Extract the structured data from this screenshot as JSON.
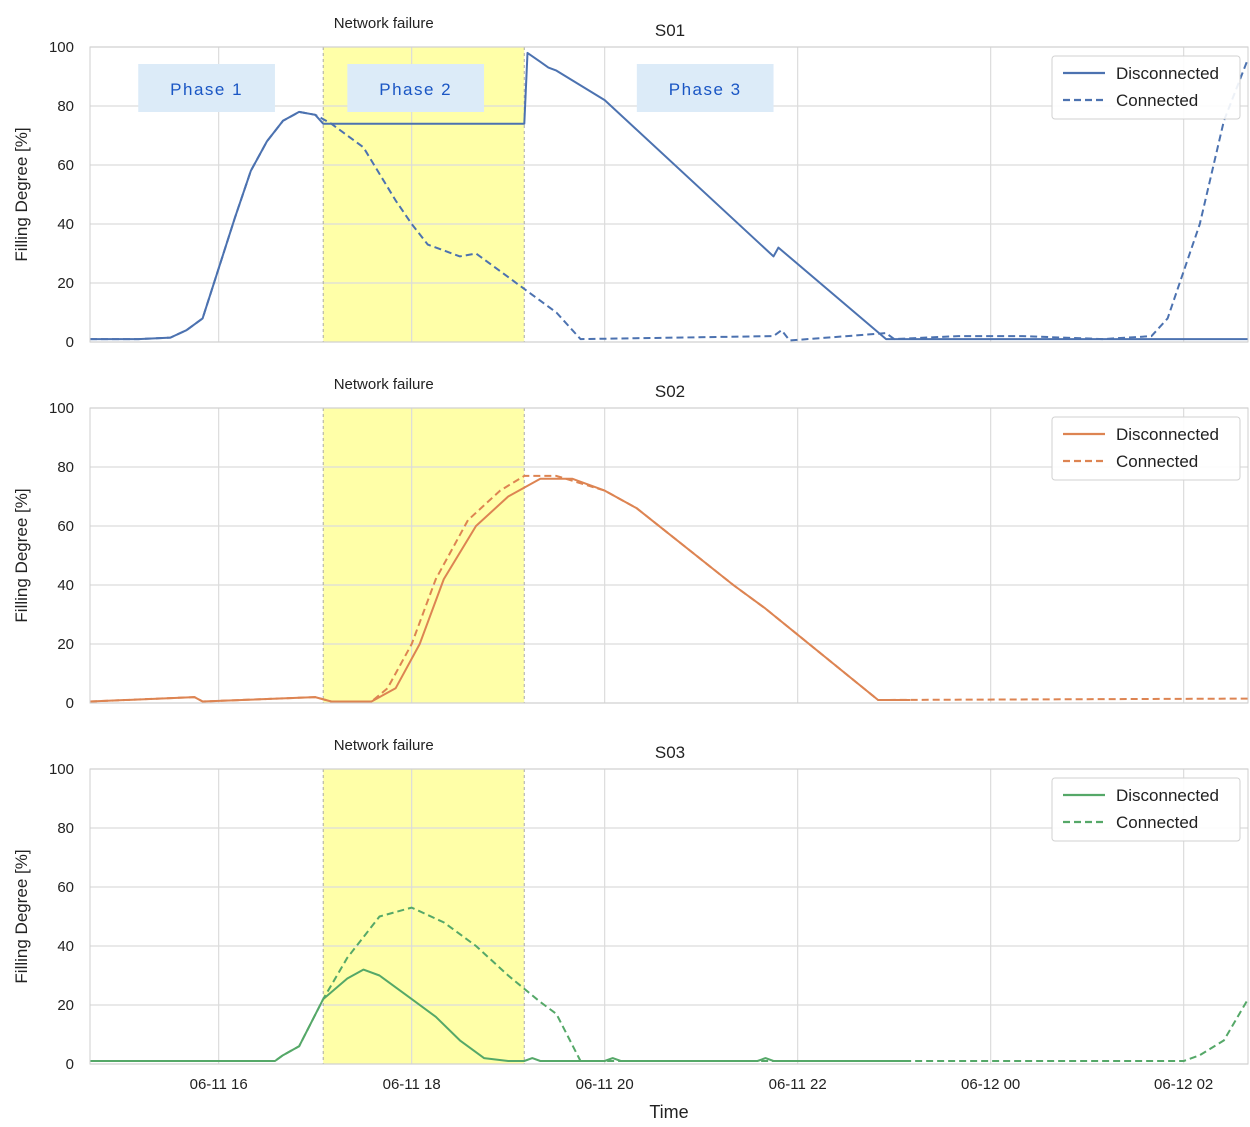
{
  "colors": {
    "S01": "#4c72b0",
    "S02": "#dd8452",
    "S03": "#55a868",
    "failure_fill": "#ffffa8",
    "phase_fill": "#dcebf8",
    "phase_text": "#1a56c4",
    "grid": "#dcdcdc",
    "axes_edge": "#cfcfcf"
  },
  "xlabel": "Time",
  "failure_label": "Network failure",
  "chart_data": [
    {
      "type": "line",
      "title": "S01",
      "ylabel": "Filling Degree [%]",
      "xlim": [
        "06-11 14:40",
        "06-12 02:40"
      ],
      "ylim": [
        0,
        100
      ],
      "yticks": [
        0,
        20,
        40,
        60,
        80,
        100
      ],
      "xticks": [
        "06-11 16",
        "06-11 18",
        "06-11 20",
        "06-11 22",
        "06-12 00",
        "06-12 02"
      ],
      "grid": true,
      "legend_position": "top-right",
      "failure_window": [
        "06-11 17:05",
        "06-11 19:10"
      ],
      "phases": [
        {
          "label": "Phase 1",
          "start": "06-11 15:10",
          "end": "06-11 16:35"
        },
        {
          "label": "Phase 2",
          "start": "06-11 17:20",
          "end": "06-11 18:45"
        },
        {
          "label": "Phase 3",
          "start": "06-11 20:20",
          "end": "06-11 21:45"
        }
      ],
      "series": [
        {
          "name": "Disconnected",
          "style": "solid",
          "points": [
            [
              "06-11 14:40",
              1
            ],
            [
              "06-11 15:10",
              1
            ],
            [
              "06-11 15:30",
              1.5
            ],
            [
              "06-11 15:40",
              4
            ],
            [
              "06-11 15:50",
              8
            ],
            [
              "06-11 16:00",
              25
            ],
            [
              "06-11 16:10",
              42
            ],
            [
              "06-11 16:20",
              58
            ],
            [
              "06-11 16:30",
              68
            ],
            [
              "06-11 16:40",
              75
            ],
            [
              "06-11 16:50",
              78
            ],
            [
              "06-11 17:00",
              77
            ],
            [
              "06-11 17:05",
              74
            ],
            [
              "06-11 19:10",
              74
            ],
            [
              "06-11 19:12",
              98
            ],
            [
              "06-11 19:20",
              95
            ],
            [
              "06-11 19:25",
              93
            ],
            [
              "06-11 19:30",
              92
            ],
            [
              "06-11 20:00",
              82
            ],
            [
              "06-11 21:45",
              29
            ],
            [
              "06-11 21:48",
              32
            ],
            [
              "06-11 22:55",
              1
            ],
            [
              "06-12 02:40",
              1
            ]
          ]
        },
        {
          "name": "Connected",
          "style": "dashed",
          "points": [
            [
              "06-11 14:40",
              1
            ],
            [
              "06-11 15:10",
              1
            ],
            [
              "06-11 15:30",
              1.5
            ],
            [
              "06-11 15:40",
              4
            ],
            [
              "06-11 15:50",
              8
            ],
            [
              "06-11 16:00",
              25
            ],
            [
              "06-11 16:10",
              42
            ],
            [
              "06-11 16:20",
              58
            ],
            [
              "06-11 16:30",
              68
            ],
            [
              "06-11 16:40",
              75
            ],
            [
              "06-11 16:50",
              78
            ],
            [
              "06-11 17:00",
              77
            ],
            [
              "06-11 17:10",
              74
            ],
            [
              "06-11 17:30",
              66
            ],
            [
              "06-11 17:50",
              48
            ],
            [
              "06-11 18:00",
              40
            ],
            [
              "06-11 18:10",
              33
            ],
            [
              "06-11 18:30",
              29
            ],
            [
              "06-11 18:40",
              30
            ],
            [
              "06-11 19:00",
              22
            ],
            [
              "06-11 19:20",
              14
            ],
            [
              "06-11 19:30",
              10
            ],
            [
              "06-11 19:45",
              1
            ],
            [
              "06-11 21:45",
              2
            ],
            [
              "06-11 21:50",
              4
            ],
            [
              "06-11 21:55",
              0.5
            ],
            [
              "06-11 22:55",
              3
            ],
            [
              "06-11 23:00",
              1
            ],
            [
              "06-11 23:40",
              2
            ],
            [
              "06-12 00:20",
              2
            ],
            [
              "06-12 01:10",
              1
            ],
            [
              "06-12 01:40",
              2
            ],
            [
              "06-12 01:50",
              8
            ],
            [
              "06-12 02:10",
              40
            ],
            [
              "06-12 02:25",
              75
            ],
            [
              "06-12 02:40",
              96
            ]
          ]
        }
      ]
    },
    {
      "type": "line",
      "title": "S02",
      "ylabel": "Filling Degree [%]",
      "xlim": [
        "06-11 14:40",
        "06-12 02:40"
      ],
      "ylim": [
        0,
        100
      ],
      "yticks": [
        0,
        20,
        40,
        60,
        80,
        100
      ],
      "xticks": [
        "06-11 16",
        "06-11 18",
        "06-11 20",
        "06-11 22",
        "06-12 00",
        "06-12 02"
      ],
      "grid": true,
      "legend_position": "top-right",
      "failure_window": [
        "06-11 17:05",
        "06-11 19:10"
      ],
      "series": [
        {
          "name": "Disconnected",
          "style": "solid",
          "points": [
            [
              "06-11 14:40",
              0.5
            ],
            [
              "06-11 15:45",
              2
            ],
            [
              "06-11 15:50",
              0.5
            ],
            [
              "06-11 17:00",
              2
            ],
            [
              "06-11 17:10",
              0.5
            ],
            [
              "06-11 17:35",
              0.5
            ],
            [
              "06-11 17:50",
              5
            ],
            [
              "06-11 18:05",
              20
            ],
            [
              "06-11 18:20",
              42
            ],
            [
              "06-11 18:40",
              60
            ],
            [
              "06-11 19:00",
              70
            ],
            [
              "06-11 19:20",
              76
            ],
            [
              "06-11 19:40",
              76
            ],
            [
              "06-11 20:00",
              72
            ],
            [
              "06-11 20:20",
              66
            ],
            [
              "06-11 21:20",
              40
            ],
            [
              "06-11 21:40",
              32
            ],
            [
              "06-11 22:50",
              1
            ],
            [
              "06-11 23:10",
              1
            ]
          ]
        },
        {
          "name": "Connected",
          "style": "dashed",
          "points": [
            [
              "06-11 14:40",
              0.5
            ],
            [
              "06-11 15:45",
              2
            ],
            [
              "06-11 15:50",
              0.5
            ],
            [
              "06-11 17:00",
              2
            ],
            [
              "06-11 17:10",
              0.5
            ],
            [
              "06-11 17:35",
              0.5
            ],
            [
              "06-11 17:45",
              5
            ],
            [
              "06-11 18:00",
              20
            ],
            [
              "06-11 18:15",
              42
            ],
            [
              "06-11 18:35",
              62
            ],
            [
              "06-11 18:55",
              72
            ],
            [
              "06-11 19:10",
              77
            ],
            [
              "06-11 19:30",
              77
            ],
            [
              "06-11 20:00",
              72
            ],
            [
              "06-11 20:20",
              66
            ],
            [
              "06-11 21:20",
              40
            ],
            [
              "06-11 21:40",
              32
            ],
            [
              "06-11 22:50",
              1
            ],
            [
              "06-12 02:40",
              1.5
            ]
          ]
        }
      ]
    },
    {
      "type": "line",
      "title": "S03",
      "ylabel": "Filling Degree [%]",
      "xlim": [
        "06-11 14:40",
        "06-12 02:40"
      ],
      "ylim": [
        0,
        100
      ],
      "yticks": [
        0,
        20,
        40,
        60,
        80,
        100
      ],
      "xticks": [
        "06-11 16",
        "06-11 18",
        "06-11 20",
        "06-11 22",
        "06-12 00",
        "06-12 02"
      ],
      "grid": true,
      "legend_position": "top-right",
      "failure_window": [
        "06-11 17:05",
        "06-11 19:10"
      ],
      "series": [
        {
          "name": "Disconnected",
          "style": "solid",
          "points": [
            [
              "06-11 14:40",
              1
            ],
            [
              "06-11 16:35",
              1
            ],
            [
              "06-11 16:40",
              3
            ],
            [
              "06-11 16:50",
              6
            ],
            [
              "06-11 17:05",
              22
            ],
            [
              "06-11 17:20",
              29
            ],
            [
              "06-11 17:30",
              32
            ],
            [
              "06-11 17:40",
              30
            ],
            [
              "06-11 18:00",
              22
            ],
            [
              "06-11 18:15",
              16
            ],
            [
              "06-11 18:30",
              8
            ],
            [
              "06-11 18:45",
              2
            ],
            [
              "06-11 19:00",
              1
            ],
            [
              "06-11 19:10",
              1
            ],
            [
              "06-11 19:15",
              2
            ],
            [
              "06-11 19:20",
              1
            ],
            [
              "06-11 20:00",
              1
            ],
            [
              "06-11 20:05",
              2
            ],
            [
              "06-11 20:10",
              1
            ],
            [
              "06-11 21:35",
              1
            ],
            [
              "06-11 21:40",
              2
            ],
            [
              "06-11 21:45",
              1
            ],
            [
              "06-11 23:10",
              1
            ]
          ]
        },
        {
          "name": "Connected",
          "style": "dashed",
          "points": [
            [
              "06-11 14:40",
              1
            ],
            [
              "06-11 16:35",
              1
            ],
            [
              "06-11 16:40",
              3
            ],
            [
              "06-11 16:50",
              6
            ],
            [
              "06-11 17:05",
              22
            ],
            [
              "06-11 17:20",
              36
            ],
            [
              "06-11 17:40",
              50
            ],
            [
              "06-11 18:00",
              53
            ],
            [
              "06-11 18:20",
              48
            ],
            [
              "06-11 18:40",
              40
            ],
            [
              "06-11 19:00",
              30
            ],
            [
              "06-11 19:20",
              21
            ],
            [
              "06-11 19:30",
              17
            ],
            [
              "06-11 19:45",
              1
            ],
            [
              "06-12 02:00",
              1
            ],
            [
              "06-12 02:10",
              3
            ],
            [
              "06-12 02:25",
              8
            ],
            [
              "06-12 02:40",
              22
            ]
          ]
        }
      ]
    }
  ]
}
